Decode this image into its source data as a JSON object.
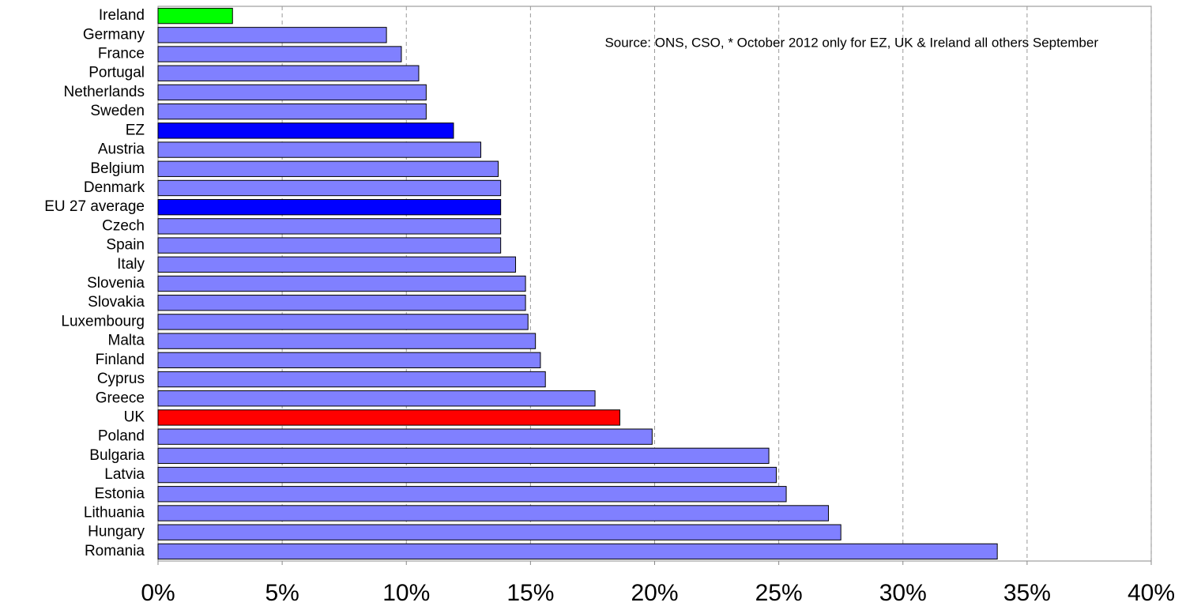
{
  "chart_data": {
    "type": "hbar",
    "annotation": "Source: ONS, CSO, * October 2012 only for EZ, UK & Ireland all others September",
    "categories": [
      "Ireland",
      "Germany",
      "France",
      "Portugal",
      "Netherlands",
      "Sweden",
      "EZ",
      "Austria",
      "Belgium",
      "Denmark",
      "EU 27 average",
      "Czech",
      "Spain",
      "Italy",
      "Slovenia",
      "Slovakia",
      "Luxembourg",
      "Malta",
      "Finland",
      "Cyprus",
      "Greece",
      "UK",
      "Poland",
      "Bulgaria",
      "Latvia",
      "Estonia",
      "Lithuania",
      "Hungary",
      "Romania"
    ],
    "values": [
      3.0,
      9.2,
      9.8,
      10.5,
      10.8,
      10.8,
      11.9,
      13.0,
      13.7,
      13.8,
      13.8,
      13.8,
      13.8,
      14.4,
      14.8,
      14.8,
      14.9,
      15.2,
      15.4,
      15.6,
      17.6,
      18.6,
      19.9,
      24.6,
      24.9,
      25.3,
      27.0,
      27.5,
      33.8
    ],
    "colors": [
      "#00ff00",
      "#8080ff",
      "#8080ff",
      "#8080ff",
      "#8080ff",
      "#8080ff",
      "#0000ff",
      "#8080ff",
      "#8080ff",
      "#8080ff",
      "#0000ff",
      "#8080ff",
      "#8080ff",
      "#8080ff",
      "#8080ff",
      "#8080ff",
      "#8080ff",
      "#8080ff",
      "#8080ff",
      "#8080ff",
      "#8080ff",
      "#ff0000",
      "#8080ff",
      "#8080ff",
      "#8080ff",
      "#8080ff",
      "#8080ff",
      "#8080ff",
      "#8080ff"
    ],
    "xlim": [
      0,
      40
    ],
    "xticks": [
      {
        "value": 0,
        "label": "0%"
      },
      {
        "value": 5,
        "label": "5%"
      },
      {
        "value": 10,
        "label": "10%"
      },
      {
        "value": 15,
        "label": "15%"
      },
      {
        "value": 20,
        "label": "20%"
      },
      {
        "value": 25,
        "label": "25%"
      },
      {
        "value": 30,
        "label": "30%"
      },
      {
        "value": 35,
        "label": "35%"
      },
      {
        "value": 40,
        "label": "40%"
      }
    ],
    "grid": true
  }
}
